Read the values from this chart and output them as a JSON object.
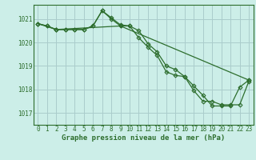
{
  "title": "Graphe pression niveau de la mer (hPa)",
  "background_color": "#cceee8",
  "grid_color": "#aacccc",
  "line_color": "#2d6e2d",
  "marker_color": "#2d6e2d",
  "ylim": [
    1016.5,
    1021.6
  ],
  "yticks": [
    1017,
    1018,
    1019,
    1020,
    1021
  ],
  "xlim": [
    -0.5,
    23.5
  ],
  "xticks": [
    0,
    1,
    2,
    3,
    4,
    5,
    6,
    7,
    8,
    9,
    10,
    11,
    12,
    13,
    14,
    15,
    16,
    17,
    18,
    19,
    20,
    21,
    22,
    23
  ],
  "series1": [
    1020.8,
    1020.7,
    1020.55,
    1020.55,
    1020.55,
    1020.55,
    1020.7,
    1021.35,
    1021.0,
    1020.7,
    1020.7,
    1020.2,
    1019.8,
    1019.45,
    1018.75,
    1018.6,
    1018.55,
    1018.15,
    1017.75,
    1017.3,
    1017.3,
    1017.3,
    1018.1,
    1018.4
  ],
  "series2": [
    1020.8,
    1020.7,
    1020.55,
    1020.55,
    1020.55,
    1020.55,
    1020.7,
    1021.35,
    1021.05,
    1020.75,
    1020.7,
    1020.5,
    1019.95,
    1019.6,
    1019.0,
    1018.85,
    1018.55,
    1017.95,
    1017.5,
    1017.5,
    1017.35,
    1017.35,
    1017.35,
    1018.35
  ],
  "series3_x": [
    0,
    2,
    9,
    23
  ],
  "series3_y": [
    1020.8,
    1020.55,
    1020.7,
    1018.4
  ]
}
